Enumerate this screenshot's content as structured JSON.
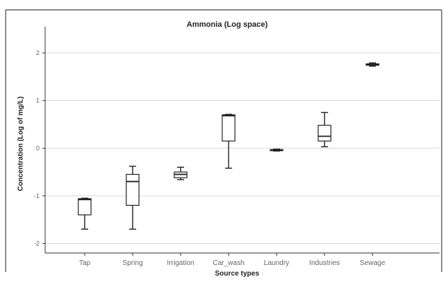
{
  "chart_data": {
    "type": "box",
    "title": "Ammonia (Log space)",
    "xlabel": "Source types",
    "ylabel": "Concentration (Log of mg/L)",
    "ylim": [
      -2.2,
      2.4
    ],
    "yticks": [
      2,
      1,
      0,
      -1,
      -2
    ],
    "ytick_labels": [
      "2",
      "1",
      "0",
      "-1",
      "-2"
    ],
    "grid": true,
    "categories": [
      "Tap",
      "Spring",
      "Irrigation",
      "Car_wash",
      "Laundry",
      "Industries",
      "Sewage"
    ],
    "series": [
      {
        "category": "Tap",
        "whisker_low": -1.7,
        "q1": -1.4,
        "median": -1.08,
        "q3": -1.06,
        "whisker_high": -1.05
      },
      {
        "category": "Spring",
        "whisker_low": -1.7,
        "q1": -1.2,
        "median": -0.7,
        "q3": -0.55,
        "whisker_high": -0.38
      },
      {
        "category": "Irrigation",
        "whisker_low": -0.66,
        "q1": -0.62,
        "median": -0.55,
        "q3": -0.5,
        "whisker_high": -0.4
      },
      {
        "category": "Car_wash",
        "whisker_low": -0.42,
        "q1": 0.15,
        "median": 0.68,
        "q3": 0.7,
        "whisker_high": 0.71
      },
      {
        "category": "Laundry",
        "whisker_low": -0.06,
        "q1": -0.05,
        "median": -0.04,
        "q3": -0.03,
        "whisker_high": -0.02
      },
      {
        "category": "Industries",
        "whisker_low": 0.03,
        "q1": 0.15,
        "median": 0.25,
        "q3": 0.48,
        "whisker_high": 0.75
      },
      {
        "category": "Sewage",
        "whisker_low": 1.72,
        "q1": 1.74,
        "median": 1.75,
        "q3": 1.77,
        "whisker_high": 1.79
      }
    ],
    "colors": {
      "box_fill": "#ffffff",
      "box_stroke": "#222222",
      "grid": "#d9d9d9",
      "axis": "#333333",
      "tick_text": "#666666",
      "label_text": "#222222",
      "border": "#444444"
    }
  }
}
